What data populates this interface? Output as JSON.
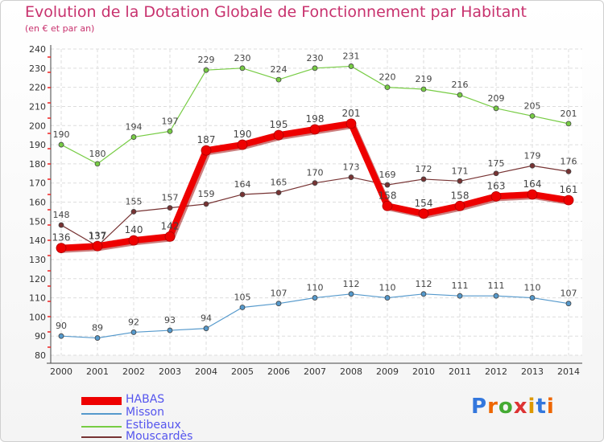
{
  "title": "Evolution de la Dotation Globale de Fonctionnement par Habitant",
  "subtitle": "(en € et par an)",
  "logo": "Proxiti",
  "chart_data": {
    "type": "line",
    "title": "Evolution de la Dotation Globale de Fonctionnement par Habitant",
    "subtitle": "(en € et par an)",
    "xlabel": "",
    "ylabel": "",
    "ylim": [
      80,
      240
    ],
    "yticks": [
      80,
      90,
      100,
      110,
      120,
      130,
      140,
      150,
      160,
      170,
      180,
      190,
      200,
      210,
      220,
      230,
      240
    ],
    "grid": true,
    "legend_position": "bottom-left",
    "x": [
      "2000",
      "2001",
      "2002",
      "2003",
      "2004",
      "2005",
      "2006",
      "2007",
      "2008",
      "2009",
      "2010",
      "2011",
      "2012",
      "2013",
      "2014"
    ],
    "series": [
      {
        "name": "Estibeaux",
        "color": "#77cc44",
        "values": [
          190,
          180,
          194,
          197,
          229,
          230,
          224,
          230,
          231,
          220,
          219,
          216,
          209,
          205,
          201
        ]
      },
      {
        "name": "Mouscardès",
        "color": "#773333",
        "values": [
          148,
          137,
          155,
          157,
          159,
          164,
          165,
          170,
          173,
          169,
          172,
          171,
          175,
          179,
          176
        ]
      },
      {
        "name": "Misson",
        "color": "#5599cc",
        "values": [
          90,
          89,
          92,
          93,
          94,
          105,
          107,
          110,
          112,
          110,
          112,
          111,
          111,
          110,
          107
        ]
      },
      {
        "name": "HABAS",
        "color": "#ee0000",
        "values": [
          136,
          137,
          140,
          142,
          187,
          190,
          195,
          198,
          201,
          158,
          154,
          158,
          163,
          164,
          161
        ]
      }
    ],
    "legend": [
      "HABAS",
      "Misson",
      "Estibeaux",
      "Mouscardès"
    ]
  }
}
